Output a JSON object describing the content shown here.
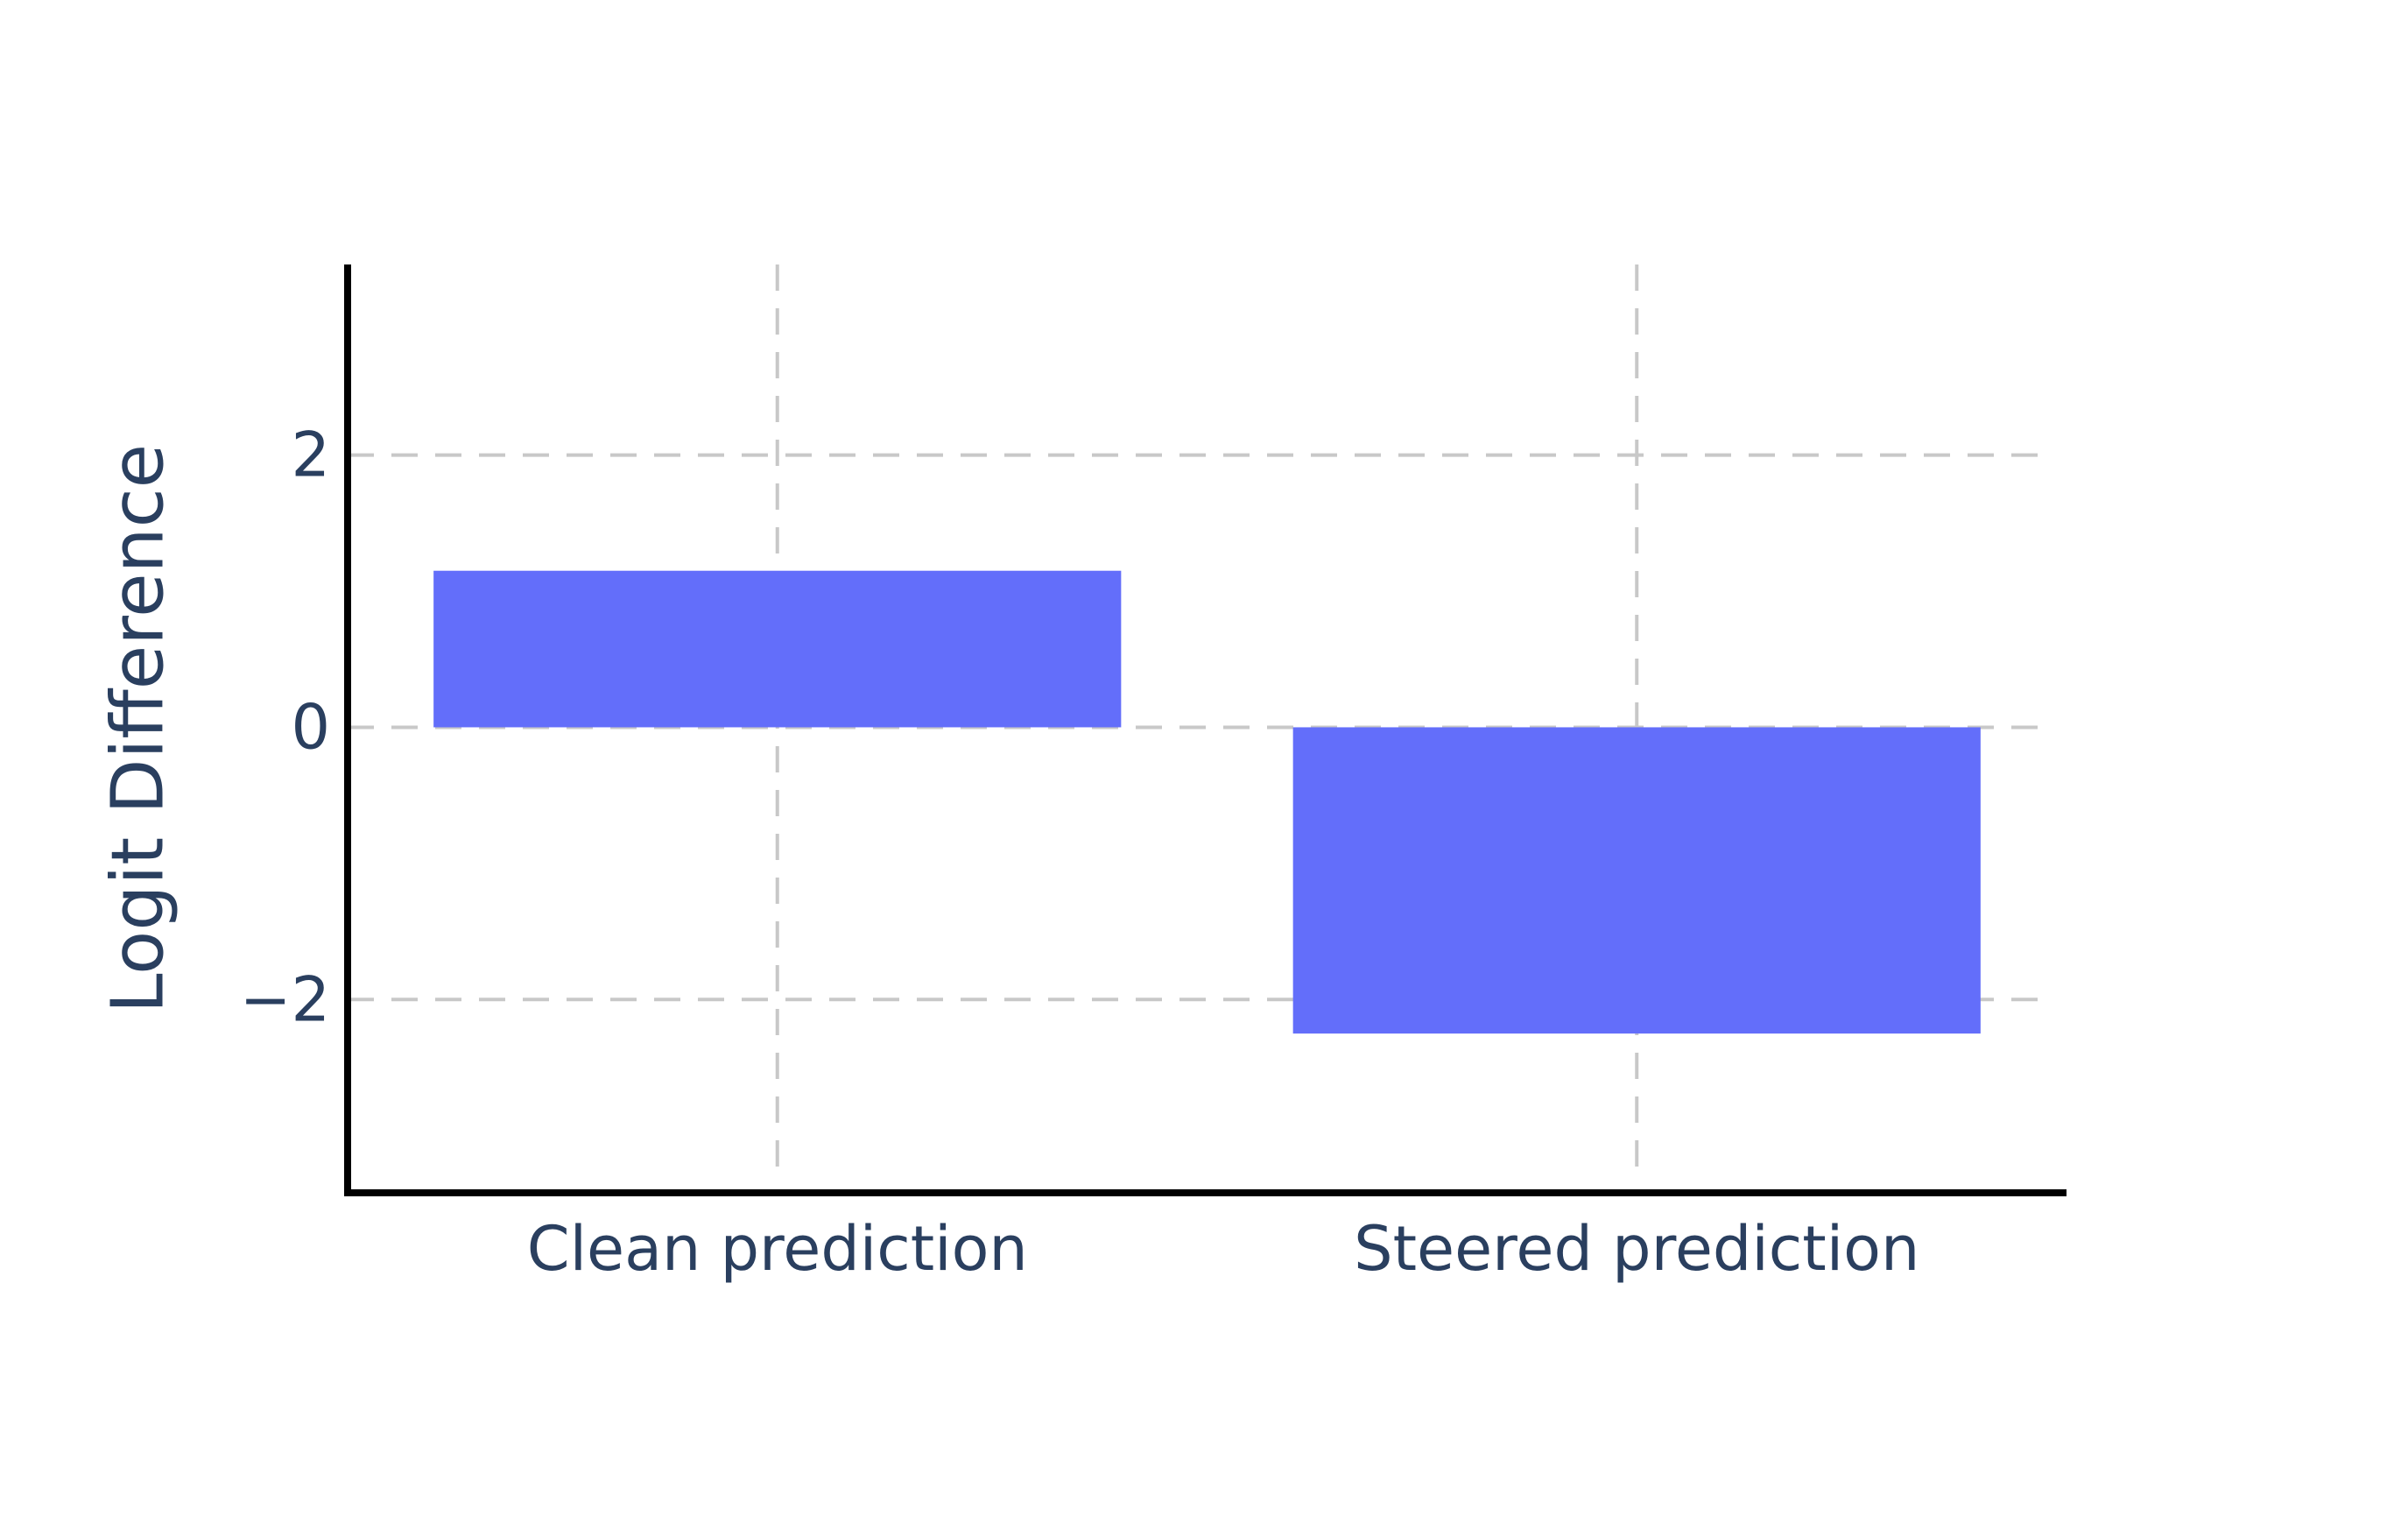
{
  "chart_data": {
    "type": "bar",
    "categories": [
      "Clean prediction",
      "Steered prediction"
    ],
    "values": [
      1.15,
      -2.25
    ],
    "title": "",
    "xlabel": "",
    "ylabel": "Logit Difference",
    "ylim": [
      -3.42,
      3.4
    ],
    "yticks": [
      2,
      0,
      -2
    ],
    "ytick_labels": [
      "2",
      "0",
      "−2"
    ],
    "grid": true,
    "legend": "none",
    "colors": {
      "bar": "#636efa",
      "axis": "#000000",
      "grid": "#c8c8c8",
      "text": "#2a3f5f"
    }
  }
}
